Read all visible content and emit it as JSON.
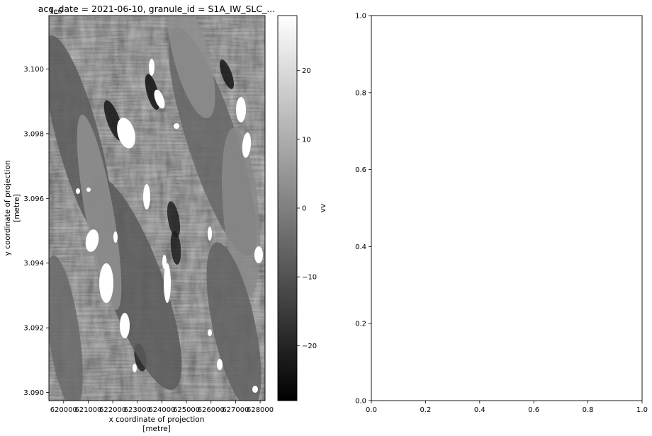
{
  "chart_data": [
    {
      "type": "heatmap",
      "title": "acq_date = 2021-06-10, granule_id = S1A_IW_SLC_...",
      "xlabel_line1": "x coordinate of projection",
      "xlabel_line2": "[metre]",
      "ylabel_line1": "y coordinate of projection",
      "ylabel_line2": "[metre]",
      "y_offset_label": "1e6",
      "xlim": [
        619400,
        628200
      ],
      "ylim": [
        3.08975,
        3.10165
      ],
      "x_ticks": [
        620000,
        621000,
        622000,
        623000,
        624000,
        625000,
        626000,
        627000,
        628000
      ],
      "x_tick_labels": [
        "620000",
        "621000",
        "622000",
        "623000",
        "624000",
        "625000",
        "626000",
        "627000",
        "628000"
      ],
      "y_ticks": [
        3.09,
        3.092,
        3.094,
        3.096,
        3.098,
        3.1
      ],
      "y_tick_labels": [
        "3.090",
        "3.092",
        "3.094",
        "3.096",
        "3.098",
        "3.100"
      ],
      "colormap": "gray",
      "colorbar": {
        "label": "vv",
        "range": [
          -28,
          28
        ],
        "ticks": [
          20,
          10,
          0,
          -10,
          -20
        ],
        "tick_labels": [
          "20",
          "10",
          "0",
          "−10",
          "−20"
        ]
      },
      "nodata_color": "#ffffff"
    },
    {
      "type": "scatter",
      "series": [],
      "xlim": [
        0,
        1
      ],
      "ylim": [
        0,
        1
      ],
      "x_ticks": [
        0.0,
        0.2,
        0.4,
        0.6,
        0.8,
        1.0
      ],
      "x_tick_labels": [
        "0.0",
        "0.2",
        "0.4",
        "0.6",
        "0.8",
        "1.0"
      ],
      "y_ticks": [
        0.0,
        0.2,
        0.4,
        0.6,
        0.8,
        1.0
      ],
      "y_tick_labels": [
        "0.0",
        "0.2",
        "0.4",
        "0.6",
        "0.8",
        "1.0"
      ]
    }
  ]
}
